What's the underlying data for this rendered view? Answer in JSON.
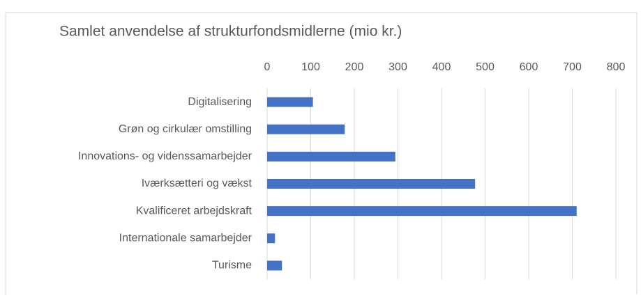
{
  "chart_data": {
    "type": "barh",
    "title": "Samlet anvendelse af strukturfondsmidlerne (mio kr.)",
    "categories": [
      "Digitalisering",
      "Grøn og cirkulær omstilling",
      "Innovations- og videnssamarbejder",
      "Iværksætteri og vækst",
      "Kvalificeret arbejdskraft",
      "Internationale samarbejder",
      "Turisme"
    ],
    "values": [
      105,
      178,
      294,
      477,
      710,
      18,
      34
    ],
    "color": "#4472c4",
    "xlim": [
      0,
      800
    ],
    "xticks": [
      0,
      100,
      200,
      300,
      400,
      500,
      600,
      700,
      800
    ],
    "grid": true
  }
}
